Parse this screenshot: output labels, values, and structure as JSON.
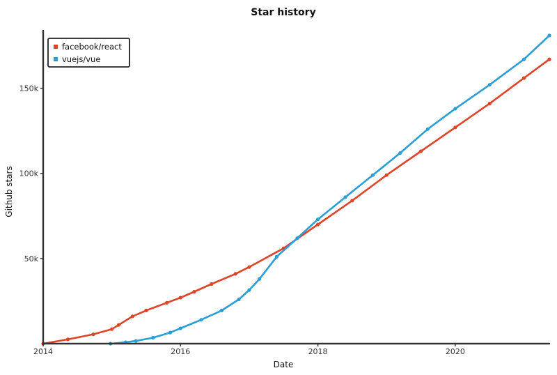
{
  "chart_data": {
    "type": "line",
    "title": "Star history",
    "xlabel": "Date",
    "ylabel": "Github stars",
    "xlim": [
      2014.0,
      2021.37
    ],
    "ylim": [
      0,
      183000
    ],
    "x_ticks": [
      {
        "value": 2014,
        "label": "2014"
      },
      {
        "value": 2016,
        "label": "2016"
      },
      {
        "value": 2018,
        "label": "2018"
      },
      {
        "value": 2020,
        "label": "2020"
      }
    ],
    "y_ticks": [
      {
        "value": 50000,
        "label": "50k"
      },
      {
        "value": 100000,
        "label": "100k"
      },
      {
        "value": 150000,
        "label": "150k"
      }
    ],
    "grid": false,
    "legend_position": "top-left",
    "series": [
      {
        "name": "facebook/react",
        "color": "#dd4528",
        "x": [
          2014.0,
          2014.36,
          2014.73,
          2015.0,
          2015.1,
          2015.3,
          2015.5,
          2015.8,
          2016.0,
          2016.2,
          2016.45,
          2016.8,
          2017.0,
          2017.5,
          2018.0,
          2018.5,
          2019.0,
          2019.5,
          2020.0,
          2020.5,
          2021.0,
          2021.37
        ],
        "y": [
          0,
          2500,
          5500,
          8500,
          11000,
          16000,
          19500,
          24000,
          27000,
          30500,
          35000,
          41000,
          45000,
          56000,
          70000,
          84000,
          99000,
          113000,
          127000,
          141000,
          156000,
          167000
        ]
      },
      {
        "name": "vuejs/vue",
        "color": "#2a9fd6",
        "x": [
          2014.98,
          2015.2,
          2015.35,
          2015.6,
          2015.85,
          2016.0,
          2016.3,
          2016.6,
          2016.85,
          2017.0,
          2017.15,
          2017.4,
          2017.7,
          2018.0,
          2018.4,
          2018.8,
          2019.2,
          2019.6,
          2020.0,
          2020.5,
          2021.0,
          2021.37
        ],
        "y": [
          0,
          800,
          1600,
          3500,
          6500,
          9000,
          14000,
          19500,
          26000,
          31500,
          38000,
          51000,
          62000,
          73000,
          86000,
          99000,
          112000,
          126000,
          138000,
          152000,
          167000,
          181000
        ]
      }
    ]
  }
}
